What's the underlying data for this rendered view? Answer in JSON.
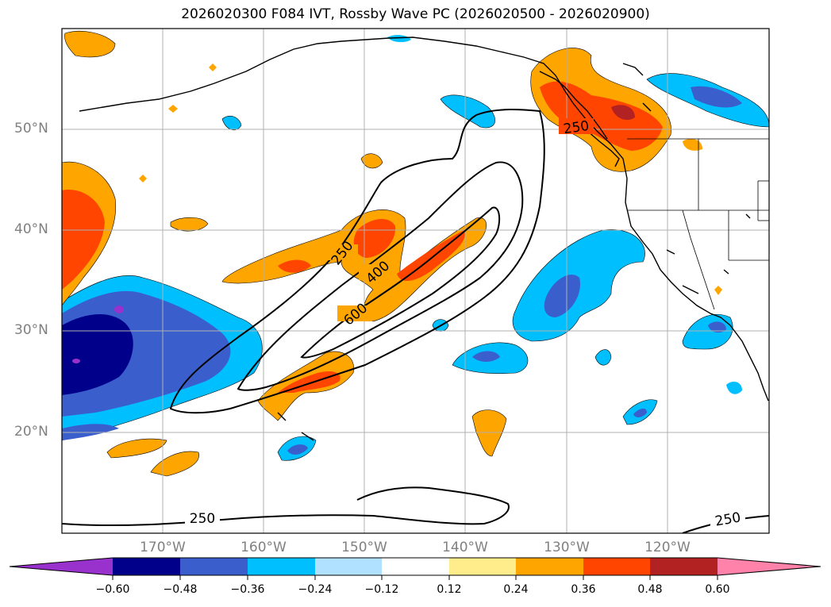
{
  "title": "2026020300 F084 IVT, Rossby Wave PC (2026020500 - 2026020900)",
  "lat_labels": [
    "50°N",
    "40°N",
    "30°N",
    "20°N"
  ],
  "lon_labels": [
    "170°W",
    "160°W",
    "150°W",
    "140°W",
    "130°W",
    "120°W"
  ],
  "contour_labels": [
    "250",
    "400",
    "600",
    "250",
    "250",
    "250"
  ],
  "colorbar": {
    "ticks": [
      "−0.60",
      "−0.48",
      "−0.36",
      "−0.24",
      "−0.12",
      "0.12",
      "0.24",
      "0.36",
      "0.48",
      "0.60"
    ],
    "colors": [
      "#9932cc",
      "#00008b",
      "#3a5fcd",
      "#00bfff",
      "#b0e2ff",
      "#ffffff",
      "#ffec8b",
      "#ffa500",
      "#ff4500",
      "#b22222",
      "#ff82ab"
    ]
  }
}
